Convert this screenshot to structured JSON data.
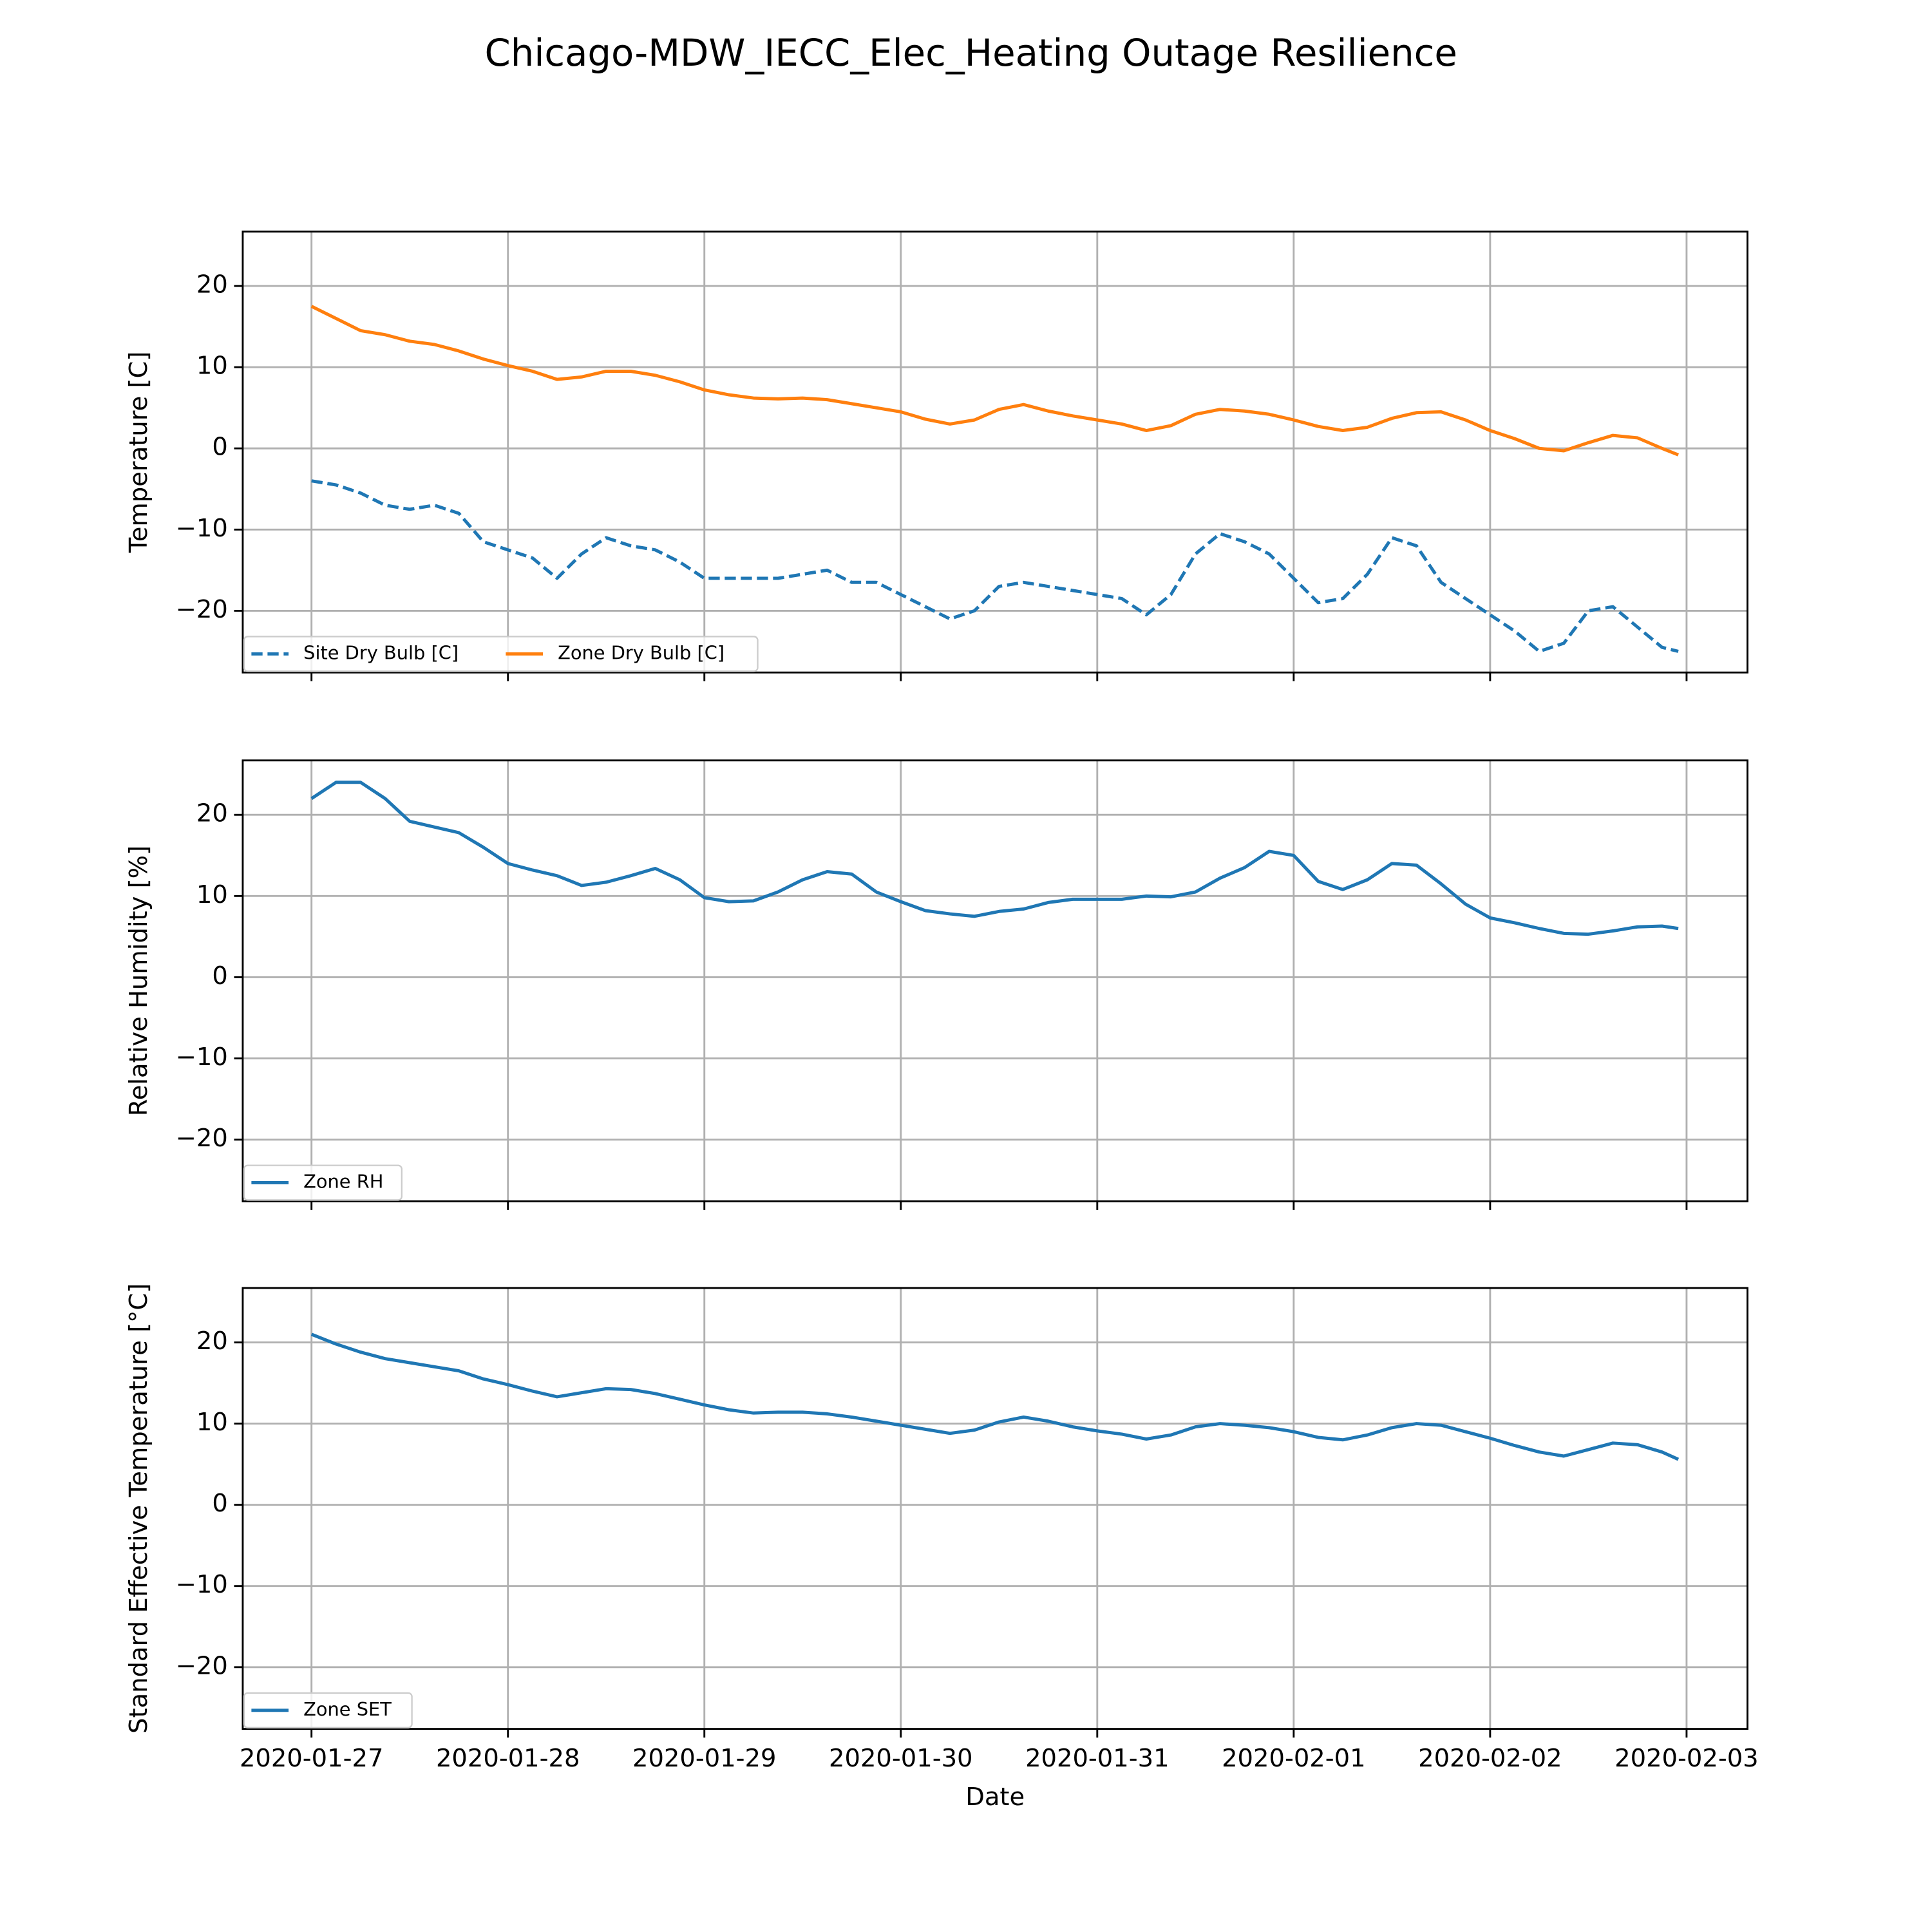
{
  "title": "Chicago-MDW_IECC_Elec_Heating Outage Resilience",
  "chart_data": [
    {
      "type": "line",
      "ylabel": "Temperature [C]",
      "x": [
        0,
        0.125,
        0.25,
        0.375,
        0.5,
        0.625,
        0.75,
        0.875,
        1,
        1.125,
        1.25,
        1.375,
        1.5,
        1.625,
        1.75,
        1.875,
        2,
        2.125,
        2.25,
        2.375,
        2.5,
        2.625,
        2.75,
        2.875,
        3,
        3.125,
        3.25,
        3.375,
        3.5,
        3.625,
        3.75,
        3.875,
        4,
        4.125,
        4.25,
        4.375,
        4.5,
        4.625,
        4.75,
        4.875,
        5,
        5.125,
        5.25,
        5.375,
        5.5,
        5.625,
        5.75,
        5.875,
        6,
        6.125,
        6.25,
        6.375,
        6.5,
        6.625,
        6.75,
        6.875,
        6.958
      ],
      "series": [
        {
          "name": "Site Dry Bulb [C]",
          "color": "#1f77b4",
          "linestyle": "dashed",
          "values": [
            -4,
            -4.5,
            -5.5,
            -7,
            -7.5,
            -7,
            -8,
            -11.5,
            -12.5,
            -13.5,
            -16,
            -13,
            -11,
            -12,
            -12.5,
            -14,
            -16,
            -16,
            -16,
            -16,
            -15.5,
            -15,
            -16.5,
            -16.5,
            -18,
            -19.5,
            -21,
            -20,
            -17,
            -16.5,
            -17,
            -17.5,
            -18,
            -18.5,
            -20.5,
            -18,
            -13,
            -10.5,
            -11.5,
            -13,
            -16,
            -19,
            -18.5,
            -15.5,
            -11,
            -12,
            -16.5,
            -18.5,
            -20.5,
            -22.5,
            -25,
            -24,
            -20,
            -19.5,
            -22,
            -24.5,
            -25
          ]
        },
        {
          "name": "Zone Dry Bulb [C]",
          "color": "#ff7f0e",
          "linestyle": "solid",
          "values": [
            17.5,
            16,
            14.5,
            14,
            13.2,
            12.8,
            12,
            11,
            10.2,
            9.5,
            8.5,
            8.8,
            9.5,
            9.5,
            9,
            8.2,
            7.2,
            6.6,
            6.2,
            6.1,
            6.2,
            6,
            5.5,
            5,
            4.5,
            3.6,
            3,
            3.5,
            4.8,
            5.4,
            4.6,
            4,
            3.5,
            3,
            2.2,
            2.8,
            4.2,
            4.8,
            4.6,
            4.2,
            3.5,
            2.7,
            2.2,
            2.6,
            3.7,
            4.4,
            4.5,
            3.5,
            2.2,
            1.2,
            0,
            -0.3,
            0.7,
            1.6,
            1.3,
            0,
            -0.8
          ]
        }
      ],
      "xlim": [
        -0.35,
        7.31
      ],
      "xticks": [
        0,
        1,
        2,
        3,
        4,
        5,
        6,
        7
      ],
      "ylim": [
        -27.6,
        26.7
      ],
      "yticks": [
        {
          "value": -20,
          "label": "−20"
        },
        {
          "value": -10,
          "label": "−10"
        },
        {
          "value": 0,
          "label": "0"
        },
        {
          "value": 10,
          "label": "10"
        },
        {
          "value": 20,
          "label": "20"
        }
      ],
      "grid": true,
      "legend_loc": "lower left",
      "legend_columns": 2
    },
    {
      "type": "line",
      "ylabel": "Relative Humidity [%]",
      "x": [
        0,
        0.125,
        0.25,
        0.375,
        0.5,
        0.625,
        0.75,
        0.875,
        1,
        1.125,
        1.25,
        1.375,
        1.5,
        1.625,
        1.75,
        1.875,
        2,
        2.125,
        2.25,
        2.375,
        2.5,
        2.625,
        2.75,
        2.875,
        3,
        3.125,
        3.25,
        3.375,
        3.5,
        3.625,
        3.75,
        3.875,
        4,
        4.125,
        4.25,
        4.375,
        4.5,
        4.625,
        4.75,
        4.875,
        5,
        5.125,
        5.25,
        5.375,
        5.5,
        5.625,
        5.75,
        5.875,
        6,
        6.125,
        6.25,
        6.375,
        6.5,
        6.625,
        6.75,
        6.875,
        6.958
      ],
      "series": [
        {
          "name": "Zone RH",
          "color": "#1f77b4",
          "linestyle": "solid",
          "values": [
            22,
            24,
            24,
            22,
            19.2,
            18.5,
            17.8,
            16,
            14,
            13.2,
            12.5,
            11.3,
            11.7,
            12.5,
            13.4,
            12,
            9.8,
            9.3,
            9.4,
            10.5,
            12,
            13,
            12.7,
            10.5,
            9.3,
            8.2,
            7.8,
            7.5,
            8.1,
            8.4,
            9.2,
            9.6,
            9.6,
            9.6,
            10,
            9.9,
            10.5,
            12.2,
            13.5,
            15.5,
            15,
            11.8,
            10.8,
            12,
            14,
            13.8,
            11.5,
            9,
            7.3,
            6.7,
            6,
            5.4,
            5.3,
            5.7,
            6.2,
            6.3,
            6
          ]
        }
      ],
      "xlim": [
        -0.35,
        7.31
      ],
      "xticks": [
        0,
        1,
        2,
        3,
        4,
        5,
        6,
        7
      ],
      "ylim": [
        -27.6,
        26.7
      ],
      "yticks": [
        {
          "value": -20,
          "label": "−20"
        },
        {
          "value": -10,
          "label": "−10"
        },
        {
          "value": 0,
          "label": "0"
        },
        {
          "value": 10,
          "label": "10"
        },
        {
          "value": 20,
          "label": "20"
        }
      ],
      "grid": true,
      "legend_loc": "lower left",
      "legend_columns": 1
    },
    {
      "type": "line",
      "ylabel": "Standard Effective Temperature [°C]",
      "xlabel": "Date",
      "x": [
        0,
        0.125,
        0.25,
        0.375,
        0.5,
        0.625,
        0.75,
        0.875,
        1,
        1.125,
        1.25,
        1.375,
        1.5,
        1.625,
        1.75,
        1.875,
        2,
        2.125,
        2.25,
        2.375,
        2.5,
        2.625,
        2.75,
        2.875,
        3,
        3.125,
        3.25,
        3.375,
        3.5,
        3.625,
        3.75,
        3.875,
        4,
        4.125,
        4.25,
        4.375,
        4.5,
        4.625,
        4.75,
        4.875,
        5,
        5.125,
        5.25,
        5.375,
        5.5,
        5.625,
        5.75,
        5.875,
        6,
        6.125,
        6.25,
        6.375,
        6.5,
        6.625,
        6.75,
        6.875,
        6.958
      ],
      "series": [
        {
          "name": "Zone SET",
          "color": "#1f77b4",
          "linestyle": "solid",
          "values": [
            21,
            19.8,
            18.8,
            18,
            17.5,
            17,
            16.5,
            15.5,
            14.8,
            14,
            13.3,
            13.8,
            14.3,
            14.2,
            13.7,
            13,
            12.3,
            11.7,
            11.3,
            11.4,
            11.4,
            11.2,
            10.8,
            10.3,
            9.8,
            9.3,
            8.8,
            9.2,
            10.2,
            10.8,
            10.3,
            9.6,
            9.1,
            8.7,
            8.1,
            8.6,
            9.6,
            10,
            9.8,
            9.5,
            9,
            8.3,
            8,
            8.6,
            9.5,
            10,
            9.8,
            9,
            8.2,
            7.3,
            6.5,
            6,
            6.8,
            7.6,
            7.4,
            6.5,
            5.6
          ]
        }
      ],
      "xlim": [
        -0.35,
        7.31
      ],
      "xticks": [
        {
          "value": 0,
          "label": "2020-01-27"
        },
        {
          "value": 1,
          "label": "2020-01-28"
        },
        {
          "value": 2,
          "label": "2020-01-29"
        },
        {
          "value": 3,
          "label": "2020-01-30"
        },
        {
          "value": 4,
          "label": "2020-01-31"
        },
        {
          "value": 5,
          "label": "2020-02-01"
        },
        {
          "value": 6,
          "label": "2020-02-02"
        },
        {
          "value": 7,
          "label": "2020-02-03"
        }
      ],
      "ylim": [
        -27.6,
        26.7
      ],
      "yticks": [
        {
          "value": -20,
          "label": "−20"
        },
        {
          "value": -10,
          "label": "−10"
        },
        {
          "value": 0,
          "label": "0"
        },
        {
          "value": 10,
          "label": "10"
        },
        {
          "value": 20,
          "label": "20"
        }
      ],
      "grid": true,
      "legend_loc": "lower left",
      "legend_columns": 1
    }
  ]
}
